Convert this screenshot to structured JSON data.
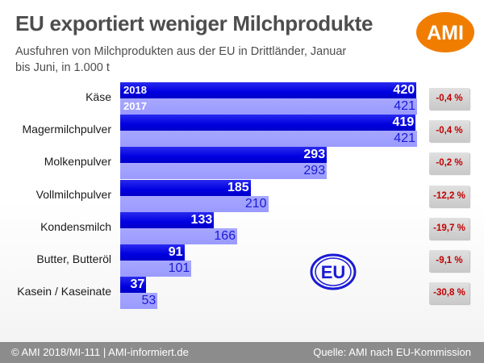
{
  "title": "EU exportiert weniger Milchprodukte",
  "subtitle": "Ausfuhren von Milchprodukten aus der EU in Drittländer, Januar bis Juni, in 1.000 t",
  "logo_text": "AMI",
  "eu_logo_text": "EU",
  "footer": {
    "left": "© AMI 2018/MI-111 | AMI-informiert.de",
    "right": "Quelle: AMI nach EU-Kommission"
  },
  "colors": {
    "bar_2018": "#0000e0",
    "bar_2017": "#9a9aff",
    "pct_text": "#c00000",
    "logo": "#f07d00",
    "footer_bg": "#8c8c8c"
  },
  "chart_data": {
    "type": "bar",
    "orientation": "horizontal",
    "categories": [
      "Käse",
      "Magermilchpulver",
      "Molkenpulver",
      "Vollmilchpulver",
      "Kondensmilch",
      "Butter, Butteröl",
      "Kasein / Kaseinate"
    ],
    "series": [
      {
        "name": "2018",
        "values": [
          420,
          419,
          293,
          185,
          133,
          91,
          37
        ]
      },
      {
        "name": "2017",
        "values": [
          421,
          421,
          293,
          210,
          166,
          101,
          53
        ]
      }
    ],
    "changes": [
      "-0,4 %",
      "-0,4 %",
      "-0,2 %",
      "-12,2 %",
      "-19,7 %",
      "-9,1 %",
      "-30,8 %"
    ],
    "series_label_row": 0,
    "xlim": [
      0,
      421
    ]
  }
}
